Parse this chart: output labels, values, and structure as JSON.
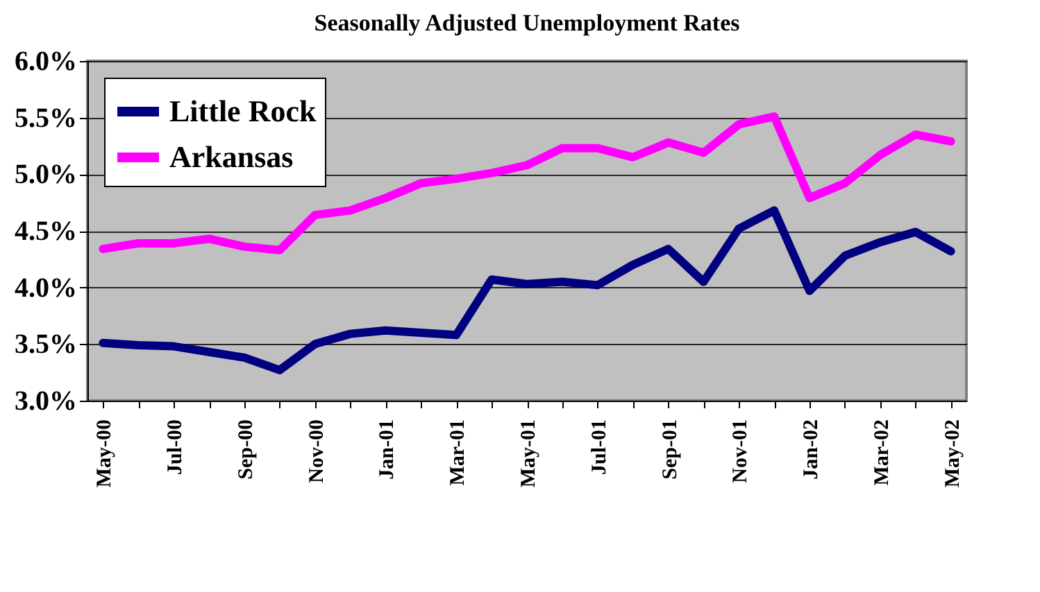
{
  "chart_data": {
    "type": "line",
    "title": "Seasonally Adjusted Unemployment Rates",
    "categories": [
      "May-00",
      null,
      "Jul-00",
      null,
      "Sep-00",
      null,
      "Nov-00",
      null,
      "Jan-01",
      null,
      "Mar-01",
      null,
      "May-01",
      null,
      "Jul-01",
      null,
      "Sep-01",
      null,
      "Nov-01",
      null,
      "Jan-02",
      null,
      "Mar-02",
      null,
      "May-02"
    ],
    "series": [
      {
        "name": "Little Rock",
        "color": "#000080",
        "values": [
          3.51,
          3.49,
          3.48,
          3.43,
          3.38,
          3.27,
          3.5,
          3.59,
          3.62,
          3.6,
          3.58,
          4.07,
          4.03,
          4.05,
          4.02,
          4.2,
          4.34,
          4.05,
          4.52,
          4.68,
          3.97,
          4.28,
          4.4,
          4.49,
          4.32
        ]
      },
      {
        "name": "Arkansas",
        "color": "#ff00ff",
        "values": [
          4.34,
          4.39,
          4.39,
          4.43,
          4.36,
          4.33,
          4.64,
          4.68,
          4.79,
          4.92,
          4.96,
          5.01,
          5.08,
          5.23,
          5.23,
          5.15,
          5.28,
          5.19,
          5.44,
          5.51,
          4.79,
          4.92,
          5.17,
          5.35,
          5.29
        ]
      }
    ],
    "ylim": [
      3,
      6
    ],
    "yticks": [
      {
        "value": 3,
        "label": "3.0%"
      },
      {
        "value": 3.5,
        "label": "3.5%"
      },
      {
        "value": 4,
        "label": "4.0%"
      },
      {
        "value": 4.5,
        "label": "4.5%"
      },
      {
        "value": 5,
        "label": "5.0%"
      },
      {
        "value": 5.5,
        "label": "5.5%"
      },
      {
        "value": 6,
        "label": "6.0%"
      }
    ],
    "grid": "y",
    "legend": "top left",
    "marker": "none",
    "line_style": "solid"
  }
}
